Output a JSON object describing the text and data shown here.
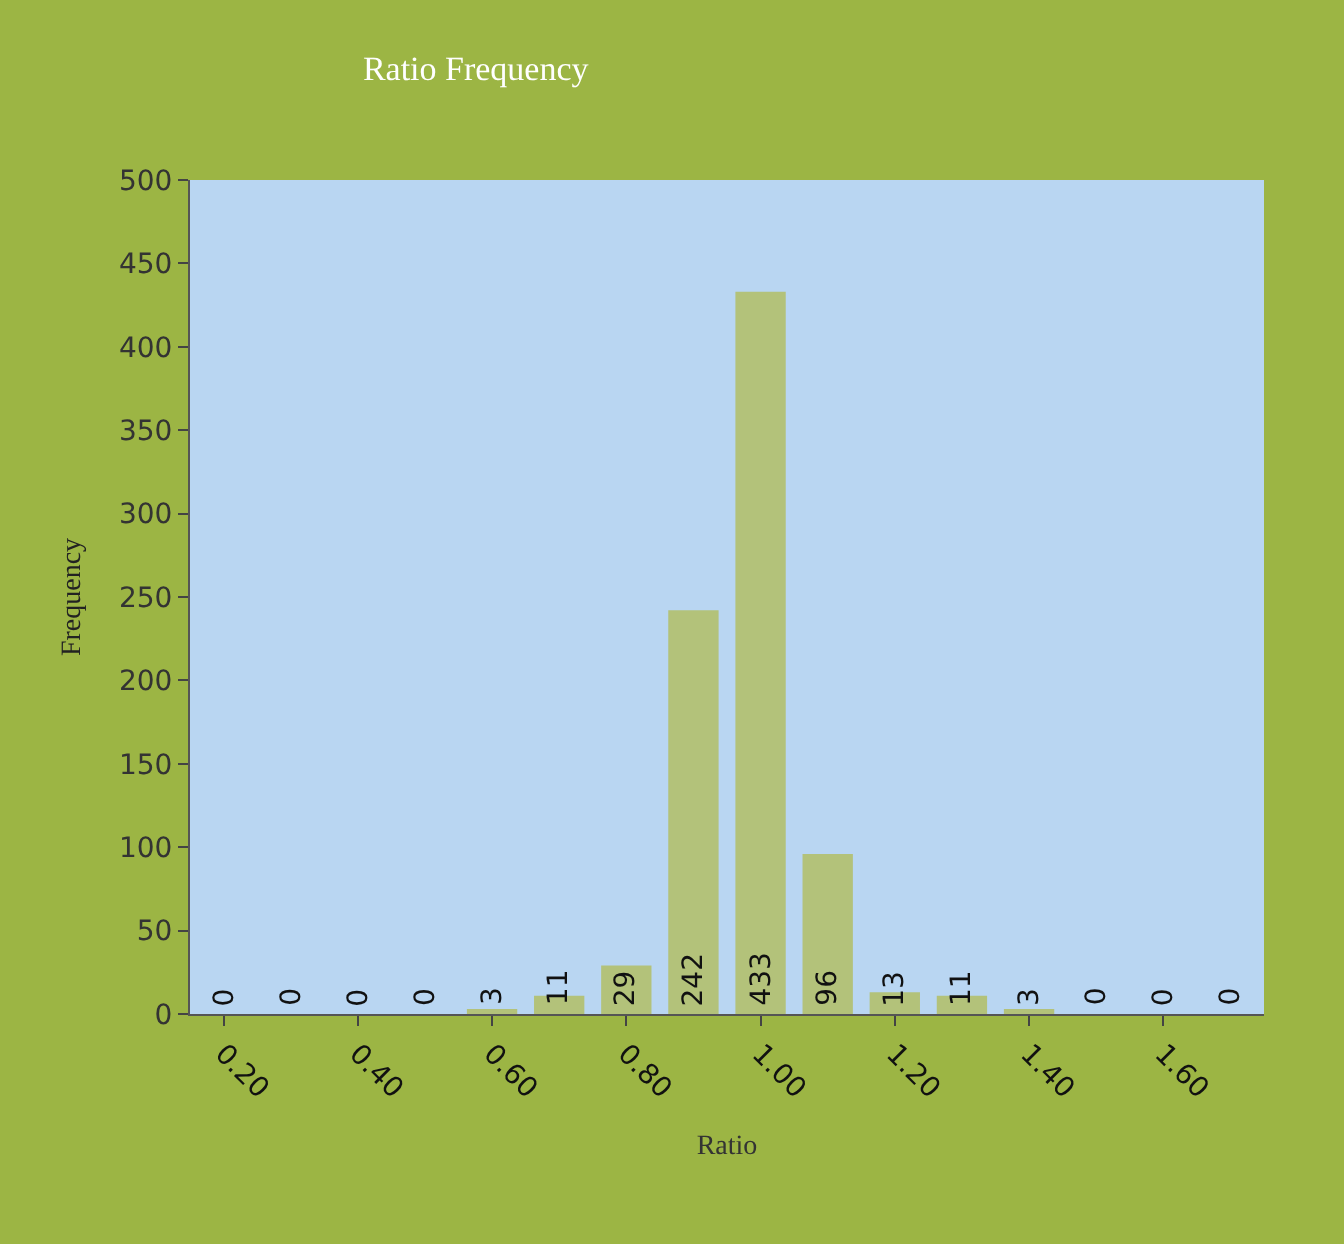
{
  "chart_data": {
    "type": "bar",
    "title": "Ratio Frequency",
    "xlabel": "Ratio",
    "ylabel": "Frequency",
    "categories": [
      "0.20",
      null,
      "0.40",
      null,
      "0.60",
      null,
      "0.80",
      null,
      "1.00",
      null,
      "1.20",
      null,
      "1.40",
      null,
      "1.60",
      null
    ],
    "values": [
      0,
      0,
      0,
      0,
      3,
      11,
      29,
      242,
      433,
      96,
      13,
      11,
      3,
      0,
      0,
      0
    ],
    "color": "#b3c27a",
    "ylim": [
      0,
      500
    ],
    "yticks": [
      0,
      50,
      100,
      150,
      200,
      250,
      300,
      350,
      400,
      450,
      500
    ],
    "data_labels": true,
    "grid": false
  }
}
